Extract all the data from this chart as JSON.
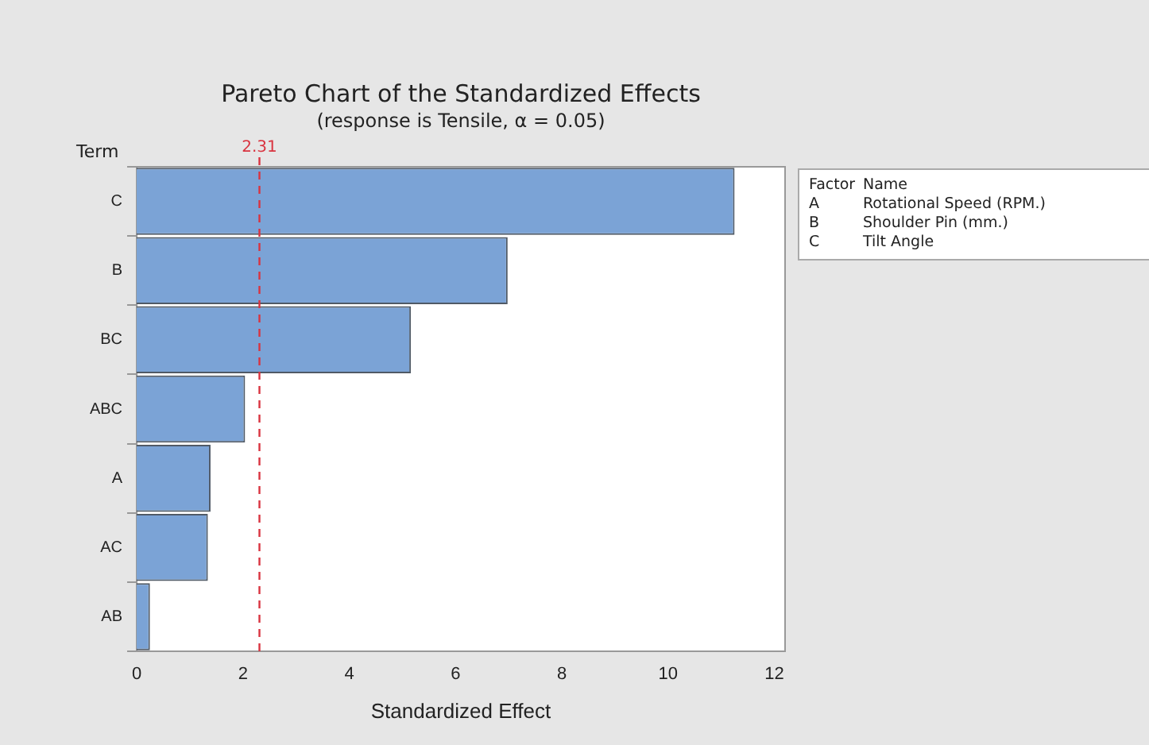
{
  "chart_data": {
    "type": "bar",
    "orientation": "horizontal",
    "title": "Pareto Chart of the Standardized Effects",
    "subtitle": "(response is Tensile, α = 0.05)",
    "xlabel": "Standardized Effect",
    "ylabel": "Term",
    "categories": [
      "C",
      "B",
      "BC",
      "ABC",
      "A",
      "AC",
      "AB"
    ],
    "values": [
      11.25,
      6.98,
      5.16,
      2.04,
      1.39,
      1.34,
      0.25
    ],
    "color": "#7ba3d6",
    "xlim": [
      0,
      12.2
    ],
    "xticks": [
      0,
      2,
      4,
      6,
      8,
      10,
      12
    ],
    "ref_lines": [
      {
        "axis": "x",
        "value": 2.31,
        "label": "2.31",
        "color": "#d9333f",
        "line_style": "dashed"
      }
    ],
    "annotations": [
      "Factor",
      "Name",
      "A",
      "Rotational Speed (RPM.)",
      "B",
      "Shoulder Pin (mm.)",
      "C",
      "Tilt Angle"
    ],
    "grid": false,
    "legend": false
  }
}
